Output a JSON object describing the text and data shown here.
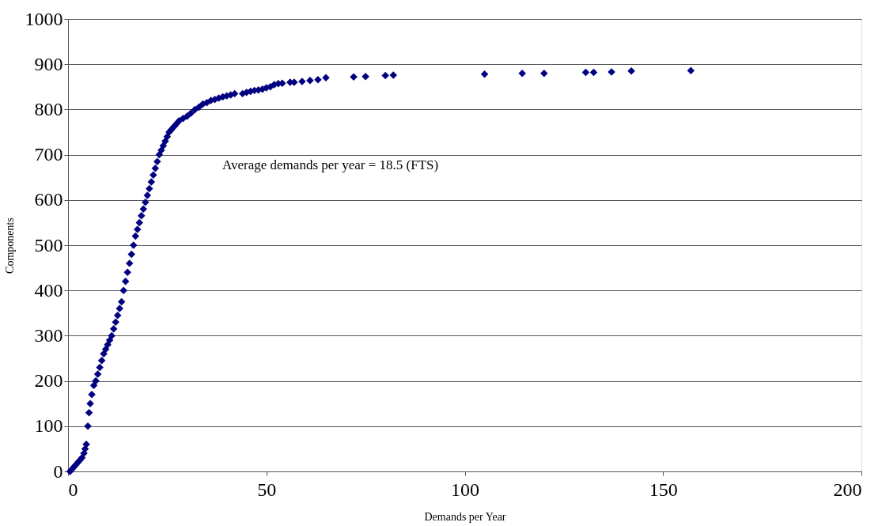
{
  "chart_data": {
    "type": "scatter",
    "xlabel": "Demands per Year",
    "ylabel": "Components",
    "annotations": [
      "Average demands per year = 18.5 (FTS)"
    ],
    "x": [
      0.5,
      1,
      1.5,
      2,
      2.5,
      3,
      3.5,
      4,
      4.3,
      4.6,
      5,
      5.3,
      5.6,
      6,
      6.5,
      7,
      7.5,
      8,
      8.5,
      9,
      9.5,
      10,
      10.5,
      11,
      11.5,
      12,
      12.5,
      13,
      13.5,
      14,
      14.5,
      15,
      15.5,
      16,
      16.5,
      17,
      17.5,
      18,
      18.5,
      19,
      19.5,
      20,
      20.5,
      21,
      21.5,
      22,
      22.5,
      23,
      23.5,
      24,
      24.5,
      25,
      25.5,
      26,
      26.5,
      27,
      27.5,
      28,
      29,
      30,
      31,
      32,
      33,
      34,
      35,
      36,
      37,
      38,
      39,
      40,
      41,
      42,
      44,
      45,
      46,
      47,
      48,
      49,
      50,
      51,
      52,
      53,
      54,
      56,
      57,
      59,
      61,
      63,
      65,
      72,
      75,
      80,
      82,
      105,
      114.5,
      120,
      130.5,
      132.5,
      137,
      142,
      157
    ],
    "series": [
      {
        "color": "#000080",
        "values": [
          0,
          5,
          10,
          15,
          20,
          25,
          30,
          40,
          50,
          60,
          100,
          130,
          150,
          170,
          190,
          200,
          215,
          230,
          245,
          260,
          270,
          280,
          290,
          300,
          315,
          330,
          345,
          360,
          375,
          400,
          420,
          440,
          460,
          480,
          500,
          520,
          535,
          550,
          565,
          580,
          595,
          610,
          625,
          640,
          655,
          670,
          685,
          700,
          710,
          720,
          730,
          740,
          750,
          755,
          760,
          765,
          770,
          775,
          780,
          785,
          792,
          800,
          805,
          812,
          815,
          820,
          822,
          825,
          828,
          830,
          832,
          835,
          835,
          838,
          840,
          842,
          843,
          845,
          848,
          850,
          855,
          857,
          858,
          860,
          860,
          862,
          864,
          866,
          870,
          872,
          873,
          875,
          876,
          878,
          880,
          880,
          882,
          882,
          883,
          885,
          886
        ]
      }
    ],
    "xlim": [
      0,
      200
    ],
    "xticks": [
      0,
      50,
      100,
      150,
      200
    ],
    "ylim": [
      0,
      1000
    ],
    "yticks": [
      0,
      100,
      200,
      300,
      400,
      500,
      600,
      700,
      800,
      900,
      1000
    ],
    "grid": "y",
    "marker": "diamond",
    "legend": false
  }
}
